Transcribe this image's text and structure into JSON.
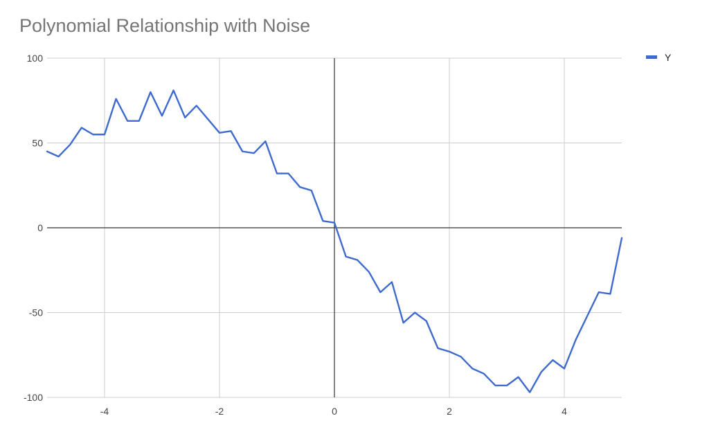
{
  "chart_data": {
    "type": "line",
    "title": "Polynomial Relationship with Noise",
    "xlabel": "",
    "ylabel": "",
    "xlim": [
      -5,
      5
    ],
    "ylim": [
      -100,
      100
    ],
    "x_ticks": [
      -4,
      -2,
      0,
      2,
      4
    ],
    "y_ticks": [
      100,
      50,
      0,
      -50,
      -100
    ],
    "x_tick_labels": [
      "-4",
      "-2",
      "0",
      "2",
      "4"
    ],
    "y_tick_labels": [
      "100",
      "50",
      "0",
      "-50",
      "-100"
    ],
    "grid": true,
    "legend_position": "top-right",
    "colors": {
      "series": "#3F6ACD",
      "grid": "#cccccc",
      "axis": "#333333"
    },
    "series": [
      {
        "name": "Y",
        "points": [
          [
            -5.0,
            45
          ],
          [
            -4.8,
            42
          ],
          [
            -4.6,
            49
          ],
          [
            -4.4,
            59
          ],
          [
            -4.2,
            55
          ],
          [
            -4.0,
            55
          ],
          [
            -3.8,
            76
          ],
          [
            -3.6,
            63
          ],
          [
            -3.4,
            63
          ],
          [
            -3.2,
            80
          ],
          [
            -3.0,
            66
          ],
          [
            -2.8,
            81
          ],
          [
            -2.6,
            65
          ],
          [
            -2.4,
            72
          ],
          [
            -2.2,
            64
          ],
          [
            -2.0,
            56
          ],
          [
            -1.8,
            57
          ],
          [
            -1.6,
            45
          ],
          [
            -1.4,
            44
          ],
          [
            -1.2,
            51
          ],
          [
            -1.0,
            32
          ],
          [
            -0.8,
            32
          ],
          [
            -0.6,
            24
          ],
          [
            -0.4,
            22
          ],
          [
            -0.2,
            4
          ],
          [
            0.0,
            3
          ],
          [
            0.2,
            -17
          ],
          [
            0.4,
            -19
          ],
          [
            0.6,
            -26
          ],
          [
            0.8,
            -38
          ],
          [
            1.0,
            -32
          ],
          [
            1.2,
            -56
          ],
          [
            1.4,
            -50
          ],
          [
            1.6,
            -55
          ],
          [
            1.8,
            -71
          ],
          [
            2.0,
            -73
          ],
          [
            2.2,
            -76
          ],
          [
            2.4,
            -83
          ],
          [
            2.6,
            -86
          ],
          [
            2.8,
            -93
          ],
          [
            3.0,
            -93
          ],
          [
            3.2,
            -88
          ],
          [
            3.4,
            -97
          ],
          [
            3.6,
            -85
          ],
          [
            3.8,
            -78
          ],
          [
            4.0,
            -83
          ],
          [
            4.2,
            -66
          ],
          [
            4.4,
            -52
          ],
          [
            4.6,
            -38
          ],
          [
            4.8,
            -39
          ],
          [
            5.0,
            -6
          ]
        ]
      }
    ]
  }
}
